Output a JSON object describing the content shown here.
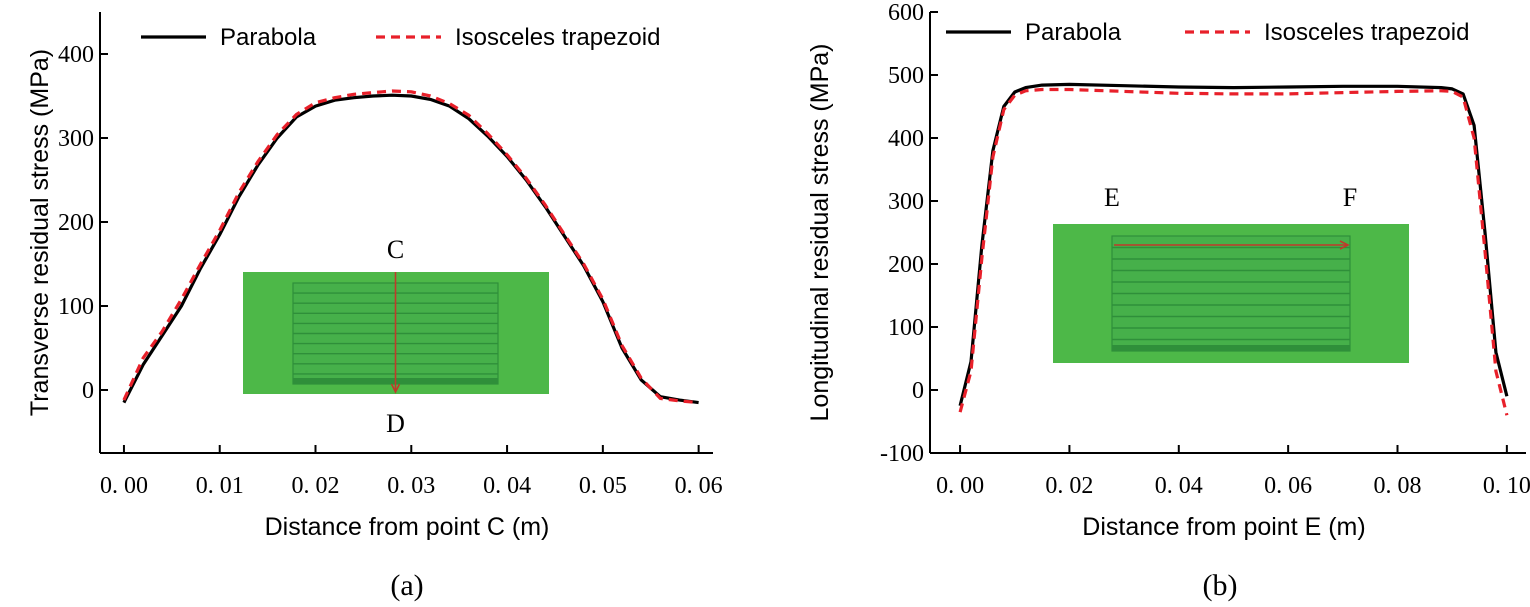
{
  "chart_data": [
    {
      "type": "line",
      "panel_label": "(a)",
      "xlabel": "Distance from point C  (m)",
      "ylabel": "Transverse residual stress  (MPa)",
      "xlim": [
        -0.0025,
        0.0615
      ],
      "ylim": [
        -75,
        450
      ],
      "xticks": [
        0,
        0.01,
        0.02,
        0.03,
        0.04,
        0.05,
        0.06
      ],
      "xtick_labels": [
        "0. 00",
        "0. 01",
        "0. 02",
        "0. 03",
        "0. 04",
        "0. 05",
        "0. 06"
      ],
      "yticks": [
        0,
        100,
        200,
        300,
        400
      ],
      "ytick_labels": [
        "0",
        "100",
        "200",
        "300",
        "400"
      ],
      "legend": "top",
      "inset": {
        "start_label": "C",
        "end_label": "D",
        "direction": "vertical"
      },
      "series": [
        {
          "name": "Parabola",
          "style": "solid",
          "color": "#000000",
          "x": [
            0,
            0.002,
            0.004,
            0.006,
            0.008,
            0.01,
            0.012,
            0.014,
            0.016,
            0.018,
            0.02,
            0.022,
            0.024,
            0.026,
            0.028,
            0.03,
            0.032,
            0.034,
            0.036,
            0.038,
            0.04,
            0.042,
            0.044,
            0.046,
            0.048,
            0.05,
            0.052,
            0.054,
            0.056,
            0.058,
            0.06
          ],
          "y": [
            -15,
            30,
            65,
            100,
            145,
            185,
            230,
            268,
            300,
            325,
            338,
            345,
            348,
            350,
            351,
            350,
            346,
            338,
            323,
            302,
            278,
            250,
            218,
            183,
            148,
            105,
            50,
            12,
            -8,
            -12,
            -15
          ]
        },
        {
          "name": "Isosceles trapezoid",
          "style": "dashed",
          "color": "#e8202a",
          "x": [
            0,
            0.002,
            0.004,
            0.006,
            0.008,
            0.01,
            0.012,
            0.014,
            0.016,
            0.018,
            0.02,
            0.022,
            0.024,
            0.026,
            0.028,
            0.03,
            0.032,
            0.034,
            0.036,
            0.038,
            0.04,
            0.042,
            0.044,
            0.046,
            0.048,
            0.05,
            0.052,
            0.054,
            0.056,
            0.058,
            0.06
          ],
          "y": [
            -12,
            38,
            70,
            108,
            150,
            190,
            235,
            272,
            304,
            328,
            342,
            348,
            352,
            354,
            356,
            355,
            350,
            341,
            327,
            305,
            280,
            252,
            220,
            185,
            150,
            108,
            53,
            14,
            -10,
            -13,
            -15
          ]
        }
      ]
    },
    {
      "type": "line",
      "panel_label": "(b)",
      "xlabel": "Distance from point E  (m)",
      "ylabel": "Longitudinal residual stress  (MPa)",
      "xlim": [
        -0.0055,
        0.1035
      ],
      "ylim": [
        -100,
        600
      ],
      "xticks": [
        0,
        0.02,
        0.04,
        0.06,
        0.08,
        0.1
      ],
      "xtick_labels": [
        "0. 00",
        "0. 02",
        "0. 04",
        "0. 06",
        "0. 08",
        "0. 10"
      ],
      "yticks": [
        -100,
        0,
        100,
        200,
        300,
        400,
        500,
        600
      ],
      "ytick_labels": [
        "-100",
        "0",
        "100",
        "200",
        "300",
        "400",
        "500",
        "600"
      ],
      "legend": "top",
      "inset": {
        "start_label": "E",
        "end_label": "F",
        "direction": "horizontal"
      },
      "series": [
        {
          "name": "Parabola",
          "style": "solid",
          "color": "#000000",
          "x": [
            0,
            0.002,
            0.004,
            0.006,
            0.008,
            0.01,
            0.012,
            0.015,
            0.02,
            0.03,
            0.04,
            0.05,
            0.06,
            0.07,
            0.08,
            0.088,
            0.09,
            0.092,
            0.094,
            0.096,
            0.098,
            0.1
          ],
          "y": [
            -25,
            45,
            230,
            380,
            450,
            473,
            480,
            484,
            485,
            483,
            481,
            480,
            481,
            482,
            482,
            480,
            478,
            470,
            420,
            250,
            60,
            -10
          ]
        },
        {
          "name": "Isosceles trapezoid",
          "style": "dashed",
          "color": "#e8202a",
          "x": [
            0,
            0.002,
            0.004,
            0.006,
            0.008,
            0.01,
            0.012,
            0.015,
            0.02,
            0.03,
            0.04,
            0.05,
            0.06,
            0.07,
            0.08,
            0.088,
            0.09,
            0.092,
            0.094,
            0.096,
            0.098,
            0.1
          ],
          "y": [
            -35,
            30,
            210,
            370,
            445,
            468,
            475,
            477,
            477,
            474,
            471,
            470,
            470,
            472,
            474,
            475,
            474,
            465,
            400,
            220,
            30,
            -40
          ]
        }
      ]
    }
  ]
}
